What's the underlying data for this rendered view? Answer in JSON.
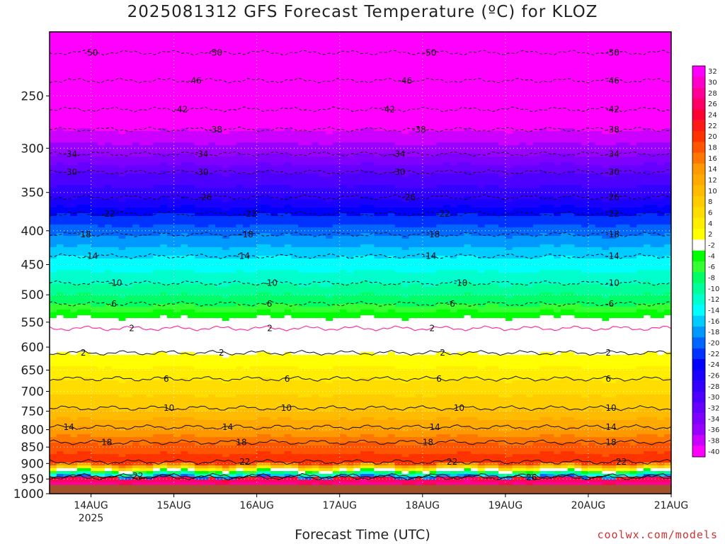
{
  "title": "2025081312 GFS Forecast Temperature (ºC) for KLOZ",
  "credit": "coolwx.com/models",
  "chart_data": {
    "type": "heatmap",
    "title": "2025081312 GFS Forecast Temperature (ºC) for KLOZ",
    "xlabel": "Forecast Time (UTC)",
    "ylabel": "",
    "x_ticks": [
      {
        "label": "14AUG",
        "sublabel": "2025",
        "hour": 12
      },
      {
        "label": "15AUG",
        "sublabel": "",
        "hour": 36
      },
      {
        "label": "16AUG",
        "sublabel": "",
        "hour": 60
      },
      {
        "label": "17AUG",
        "sublabel": "",
        "hour": 84
      },
      {
        "label": "18AUG",
        "sublabel": "",
        "hour": 108
      },
      {
        "label": "19AUG",
        "sublabel": "",
        "hour": 132
      },
      {
        "label": "20AUG",
        "sublabel": "",
        "hour": 156
      },
      {
        "label": "21AUG",
        "sublabel": "",
        "hour": 180
      }
    ],
    "xlim_hours": [
      0,
      180
    ],
    "y_ticks": [
      250,
      300,
      350,
      400,
      450,
      500,
      550,
      600,
      650,
      700,
      750,
      800,
      850,
      900,
      950,
      1000
    ],
    "ylim_hpa": [
      200,
      1000
    ],
    "y_scale": "log",
    "ground_level_hpa": 970,
    "contours": [
      {
        "value": -50,
        "hpa": 215,
        "labels_at_hours": [
          10,
          46,
          108,
          161
        ]
      },
      {
        "value": -46,
        "hpa": 237,
        "labels_at_hours": [
          40,
          101,
          161
        ]
      },
      {
        "value": -42,
        "hpa": 262,
        "labels_at_hours": [
          36,
          96,
          161
        ]
      },
      {
        "value": -38,
        "hpa": 281,
        "labels_at_hours": [
          46,
          105,
          161
        ]
      },
      {
        "value": -34,
        "hpa": 306,
        "labels_at_hours": [
          4,
          42,
          99,
          161
        ]
      },
      {
        "value": -30,
        "hpa": 326,
        "labels_at_hours": [
          4,
          42,
          99,
          161
        ]
      },
      {
        "value": -26,
        "hpa": 356,
        "labels_at_hours": [
          43,
          102,
          161
        ]
      },
      {
        "value": -22,
        "hpa": 377,
        "labels_at_hours": [
          15,
          56,
          112,
          161
        ]
      },
      {
        "value": -18,
        "hpa": 405,
        "labels_at_hours": [
          8,
          55,
          109,
          161
        ]
      },
      {
        "value": -14,
        "hpa": 437,
        "labels_at_hours": [
          10,
          54,
          108,
          161
        ]
      },
      {
        "value": -10,
        "hpa": 480,
        "labels_at_hours": [
          17,
          62,
          117,
          161
        ]
      },
      {
        "value": -6,
        "hpa": 516,
        "labels_at_hours": [
          17,
          62,
          115,
          161
        ]
      },
      {
        "value": 2,
        "hpa": 562,
        "labels_at_hours": [
          23,
          63,
          110
        ]
      },
      {
        "value": 2,
        "hpa": 612,
        "labels_at_hours": [
          9,
          49,
          113,
          161
        ]
      },
      {
        "value": 6,
        "hpa": 670,
        "labels_at_hours": [
          33,
          68,
          112,
          161
        ]
      },
      {
        "value": 10,
        "hpa": 742,
        "labels_at_hours": [
          33,
          67,
          117,
          161
        ]
      },
      {
        "value": 14,
        "hpa": 793,
        "labels_at_hours": [
          4,
          50,
          110,
          161
        ]
      },
      {
        "value": 18,
        "hpa": 836,
        "labels_at_hours": [
          15,
          54,
          108,
          161
        ]
      },
      {
        "value": 22,
        "hpa": 895,
        "labels_at_hours": [
          55,
          115,
          164
        ]
      },
      {
        "value": 22,
        "hpa": 940,
        "labels_at_hours": [
          24
        ]
      },
      {
        "value": 26,
        "hpa": 945,
        "labels_at_hours": [
          138
        ]
      }
    ],
    "colorbar": {
      "labels": [
        32,
        30,
        28,
        26,
        24,
        22,
        20,
        18,
        16,
        14,
        12,
        10,
        8,
        6,
        4,
        2,
        -2,
        -4,
        -6,
        -8,
        -10,
        -12,
        -14,
        -16,
        -18,
        -20,
        -22,
        -24,
        -26,
        -28,
        -30,
        -32,
        -34,
        -36,
        -38,
        -40
      ],
      "colors": [
        "#ff00ff",
        "#ff00cc",
        "#ff0099",
        "#ff0066",
        "#ff0033",
        "#ff1a1a",
        "#ff3300",
        "#ff5500",
        "#ff7700",
        "#ff9900",
        "#ffaa00",
        "#ffbb00",
        "#ffcc00",
        "#ffdd00",
        "#ffee00",
        "#ffff00",
        "#ffffff",
        "#00ff00",
        "#33ff33",
        "#00ff66",
        "#00ff99",
        "#00ffcc",
        "#00ffff",
        "#00ccff",
        "#0099ff",
        "#0066ff",
        "#0033ff",
        "#0000ff",
        "#1a00ff",
        "#3300ff",
        "#4d00ff",
        "#6600ff",
        "#8000ff",
        "#9900ff",
        "#cc00ff",
        "#ff00ff"
      ]
    },
    "zero_line_color": "#ff3399",
    "ground_color": "#a0522d"
  }
}
